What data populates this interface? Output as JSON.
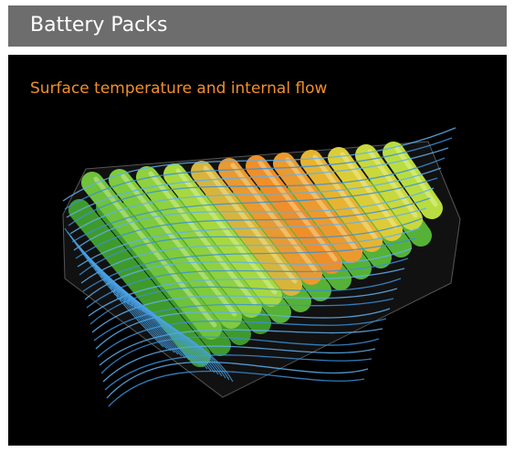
{
  "header": {
    "title": "Battery Packs"
  },
  "panel": {
    "caption": "Surface temperature and internal flow"
  }
}
